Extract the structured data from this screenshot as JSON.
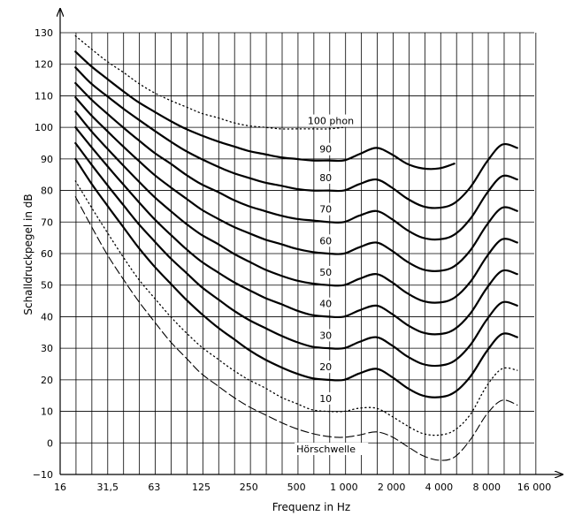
{
  "chart_data": {
    "type": "line",
    "title": "",
    "xlabel": "Frequenz in Hz",
    "ylabel": "Schalldruckpegel in dB",
    "xscale": "log",
    "xlim": [
      16,
      16000
    ],
    "ylim": [
      -10,
      130
    ],
    "x_tick_labels": [
      {
        "value": 16,
        "label": "16"
      },
      {
        "value": 31.5,
        "label": "31,5"
      },
      {
        "value": 63,
        "label": "63"
      },
      {
        "value": 125,
        "label": "125"
      },
      {
        "value": 250,
        "label": "250"
      },
      {
        "value": 500,
        "label": "500"
      },
      {
        "value": 1000,
        "label": "1 000"
      },
      {
        "value": 2000,
        "label": "2 000"
      },
      {
        "value": 4000,
        "label": "4 000"
      },
      {
        "value": 8000,
        "label": "8 000"
      },
      {
        "value": 16000,
        "label": "16 000"
      }
    ],
    "y_ticks": [
      -10,
      0,
      10,
      20,
      30,
      40,
      50,
      60,
      70,
      80,
      90,
      100,
      110,
      120,
      130
    ],
    "y_tick_labels": [
      "−10",
      "0",
      "10",
      "20",
      "30",
      "40",
      "50",
      "60",
      "70",
      "80",
      "90",
      "100",
      "110",
      "120",
      "130"
    ],
    "grid": true,
    "series": [
      {
        "name": "Hörschwelle",
        "label": "Hörschwelle",
        "style": "dashed",
        "label_at": [
          500,
          -3
        ],
        "x": [
          20,
          25,
          31.5,
          40,
          50,
          63,
          80,
          100,
          125,
          160,
          200,
          250,
          315,
          400,
          500,
          630,
          800,
          1000,
          1250,
          1600,
          2000,
          2500,
          3150,
          4000,
          5000,
          6300,
          8000,
          10000,
          12500
        ],
        "y": [
          78,
          69,
          60,
          52,
          45,
          38.5,
          32,
          27,
          22,
          18,
          14.5,
          11.5,
          9,
          6.5,
          4.5,
          3,
          2,
          1.8,
          2.5,
          3.5,
          2,
          -1,
          -4,
          -5.5,
          -4.5,
          1,
          9,
          13.5,
          12
        ]
      },
      {
        "name": "10 phon",
        "label": "10",
        "style": "dotted",
        "label_at": [
          700,
          13
        ],
        "x": [
          20,
          25,
          31.5,
          40,
          50,
          63,
          80,
          100,
          125,
          160,
          200,
          250,
          315,
          400,
          500,
          630,
          800,
          1000,
          1250,
          1600,
          2000,
          2500,
          3150,
          4000,
          5000,
          6300,
          8000,
          10000,
          12500
        ],
        "y": [
          83,
          75,
          67,
          59,
          52,
          46,
          40,
          35,
          30.5,
          26.5,
          23,
          20,
          17.5,
          14.5,
          12.5,
          10.5,
          10,
          10,
          11,
          11,
          8.5,
          5.5,
          3,
          2.5,
          4,
          9,
          18,
          23.5,
          23
        ]
      },
      {
        "name": "20 phon",
        "label": "20",
        "style": "solid",
        "label_at": [
          700,
          23
        ],
        "x": [
          20,
          25,
          31.5,
          40,
          50,
          63,
          80,
          100,
          125,
          160,
          200,
          250,
          315,
          400,
          500,
          630,
          800,
          1000,
          1250,
          1600,
          2000,
          2500,
          3150,
          4000,
          5000,
          6300,
          8000,
          10000,
          12500
        ],
        "y": [
          90,
          82.5,
          75.5,
          68.5,
          62,
          56,
          50.5,
          45.5,
          41,
          36.5,
          33,
          29.5,
          26.5,
          24,
          22,
          20.5,
          20,
          20,
          22,
          23.5,
          21,
          17.5,
          15,
          14.5,
          16,
          21,
          29,
          34.5,
          33.5
        ]
      },
      {
        "name": "30 phon",
        "label": "30",
        "style": "solid",
        "label_at": [
          700,
          33
        ],
        "x": [
          20,
          25,
          31.5,
          40,
          50,
          63,
          80,
          100,
          125,
          160,
          200,
          250,
          315,
          400,
          500,
          630,
          800,
          1000,
          1250,
          1600,
          2000,
          2500,
          3150,
          4000,
          5000,
          6300,
          8000,
          10000,
          12500
        ],
        "y": [
          95,
          88.5,
          82,
          75.5,
          69.5,
          64,
          58.5,
          54,
          49.5,
          45.5,
          42,
          39,
          36.5,
          34,
          32,
          30.5,
          30,
          30,
          32,
          33.5,
          31,
          27.5,
          25,
          24.5,
          26,
          31,
          39,
          44.5,
          43.5
        ]
      },
      {
        "name": "40 phon",
        "label": "40",
        "style": "solid",
        "label_at": [
          700,
          43
        ],
        "x": [
          20,
          25,
          31.5,
          40,
          50,
          63,
          80,
          100,
          125,
          160,
          200,
          250,
          315,
          400,
          500,
          630,
          800,
          1000,
          1250,
          1600,
          2000,
          2500,
          3150,
          4000,
          5000,
          6300,
          8000,
          10000,
          12500
        ],
        "y": [
          100,
          94,
          88,
          82,
          76.5,
          71,
          66,
          61.5,
          57.5,
          54,
          51,
          48.5,
          46,
          44,
          42,
          40.5,
          40,
          40,
          42,
          43.5,
          41,
          37.5,
          35,
          34.5,
          36,
          41,
          49,
          54.5,
          53.5
        ]
      },
      {
        "name": "50 phon",
        "label": "50",
        "style": "solid",
        "label_at": [
          700,
          53
        ],
        "x": [
          20,
          25,
          31.5,
          40,
          50,
          63,
          80,
          100,
          125,
          160,
          200,
          250,
          315,
          400,
          500,
          630,
          800,
          1000,
          1250,
          1600,
          2000,
          2500,
          3150,
          4000,
          5000,
          6300,
          8000,
          10000,
          12500
        ],
        "y": [
          105,
          99,
          93.5,
          88,
          83,
          78,
          73.5,
          69.5,
          66,
          63,
          60,
          57.5,
          55,
          53,
          51.5,
          50.5,
          50,
          50,
          52,
          53.5,
          51,
          47.5,
          45,
          44.5,
          46,
          51,
          59,
          64.5,
          63.5
        ]
      },
      {
        "name": "60 phon",
        "label": "60",
        "style": "solid",
        "label_at": [
          700,
          63
        ],
        "x": [
          20,
          25,
          31.5,
          40,
          50,
          63,
          80,
          100,
          125,
          160,
          200,
          250,
          315,
          400,
          500,
          630,
          800,
          1000,
          1250,
          1600,
          2000,
          2500,
          3150,
          4000,
          5000,
          6300,
          8000,
          10000,
          12500
        ],
        "y": [
          109.5,
          104,
          99,
          94,
          89.5,
          85,
          81,
          77.5,
          74,
          71,
          68.5,
          66.5,
          64.5,
          63,
          61.5,
          60.5,
          60,
          60,
          62,
          63.5,
          61,
          57.5,
          55,
          54.5,
          56,
          61,
          69,
          74.5,
          73.5
        ]
      },
      {
        "name": "70 phon",
        "label": "70",
        "style": "solid",
        "label_at": [
          700,
          73
        ],
        "x": [
          20,
          25,
          31.5,
          40,
          50,
          63,
          80,
          100,
          125,
          160,
          200,
          250,
          315,
          400,
          500,
          630,
          800,
          1000,
          1250,
          1600,
          2000,
          2500,
          3150,
          4000,
          5000,
          6300,
          8000,
          10000,
          12500
        ],
        "y": [
          114,
          109,
          104.5,
          100,
          96,
          92,
          88.5,
          85,
          82,
          79.5,
          77,
          75,
          73.5,
          72,
          71,
          70.5,
          70,
          70,
          72,
          73.5,
          71,
          67.5,
          65,
          64.5,
          66,
          71,
          79,
          84.5,
          83.5
        ]
      },
      {
        "name": "80 phon",
        "label": "80",
        "style": "solid",
        "label_at": [
          700,
          83
        ],
        "x": [
          20,
          25,
          31.5,
          40,
          50,
          63,
          80,
          100,
          125,
          160,
          200,
          250,
          315,
          400,
          500,
          630,
          800,
          1000,
          1250,
          1600,
          2000,
          2500,
          3150,
          4000,
          5000,
          6300,
          8000,
          10000,
          12500
        ],
        "y": [
          119,
          114,
          110,
          106,
          102.5,
          99,
          95.5,
          92.5,
          90,
          87.5,
          85.5,
          84,
          82.5,
          81.5,
          80.5,
          80,
          80,
          80,
          82,
          83.5,
          81,
          77.5,
          75,
          74.5,
          76,
          81,
          89,
          94.5,
          93.5
        ]
      },
      {
        "name": "90 phon",
        "label": "90",
        "style": "solid",
        "label_at": [
          700,
          92
        ],
        "x": [
          20,
          25,
          31.5,
          40,
          50,
          63,
          80,
          100,
          125,
          160,
          200,
          250,
          315,
          400,
          500,
          630,
          800,
          1000,
          1250,
          1600,
          2000,
          2500,
          3150,
          4000,
          5000
        ],
        "y": [
          124,
          119.5,
          115.5,
          111.5,
          108,
          105,
          102,
          99.5,
          97.5,
          95.5,
          94,
          92.5,
          91.5,
          90.5,
          90,
          89.5,
          89.5,
          89.5,
          91.5,
          93.5,
          91.5,
          88.5,
          87,
          87,
          88.5
        ]
      },
      {
        "name": "100 phon",
        "label": "100 phon",
        "style": "dotted",
        "label_at": [
          590,
          101
        ],
        "x": [
          20,
          25,
          31.5,
          40,
          50,
          63,
          80,
          100,
          125,
          160,
          200,
          250,
          315,
          400,
          500,
          630,
          800,
          1000
        ],
        "y": [
          129,
          125,
          121,
          117.5,
          114,
          111,
          108.5,
          106.5,
          104.5,
          103,
          101.5,
          100.5,
          100,
          99.5,
          99.5,
          99.5,
          99.5,
          100
        ]
      }
    ]
  }
}
